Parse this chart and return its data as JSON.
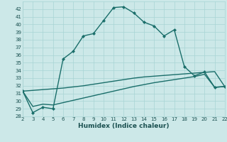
{
  "title": "",
  "xlabel": "Humidex (Indice chaleur)",
  "bg_color": "#cce8e8",
  "line_color": "#1a6e6a",
  "grid_color": "#a8d4d4",
  "xlim": [
    2,
    22
  ],
  "ylim": [
    28,
    43
  ],
  "xticks": [
    2,
    3,
    4,
    5,
    6,
    7,
    8,
    9,
    10,
    11,
    12,
    13,
    14,
    15,
    16,
    17,
    18,
    19,
    20,
    21,
    22
  ],
  "yticks": [
    28,
    29,
    30,
    31,
    32,
    33,
    34,
    35,
    36,
    37,
    38,
    39,
    40,
    41,
    42
  ],
  "main_curve_x": [
    2,
    3,
    4,
    5,
    6,
    7,
    8,
    9,
    10,
    11,
    12,
    13,
    14,
    15,
    16,
    17,
    18,
    19,
    20,
    21,
    22
  ],
  "main_curve_y": [
    31.3,
    28.5,
    29.2,
    29.0,
    35.5,
    36.5,
    38.5,
    38.8,
    40.5,
    42.2,
    42.3,
    41.5,
    40.3,
    39.8,
    38.5,
    39.3,
    34.5,
    33.3,
    33.8,
    31.8,
    31.9
  ],
  "line2_x": [
    2,
    3,
    4,
    5,
    6,
    7,
    8,
    9,
    10,
    11,
    12,
    13,
    14,
    15,
    16,
    17,
    18,
    19,
    20,
    21,
    22
  ],
  "line2_y": [
    31.3,
    31.4,
    31.5,
    31.6,
    31.7,
    31.85,
    32.0,
    32.2,
    32.4,
    32.6,
    32.8,
    33.0,
    33.15,
    33.25,
    33.35,
    33.45,
    33.55,
    33.65,
    33.75,
    33.85,
    31.9
  ],
  "line3_x": [
    2,
    3,
    4,
    5,
    6,
    7,
    8,
    9,
    10,
    11,
    12,
    13,
    14,
    15,
    16,
    17,
    18,
    19,
    20,
    21,
    22
  ],
  "line3_y": [
    31.3,
    29.3,
    29.6,
    29.5,
    29.8,
    30.1,
    30.4,
    30.7,
    31.0,
    31.3,
    31.6,
    31.9,
    32.15,
    32.4,
    32.6,
    32.8,
    33.0,
    33.2,
    33.5,
    31.8,
    31.9
  ],
  "font_color": "#1a5050",
  "marker_size": 2.5,
  "line_width": 1.0,
  "tick_fontsize": 5.0,
  "xlabel_fontsize": 6.5
}
